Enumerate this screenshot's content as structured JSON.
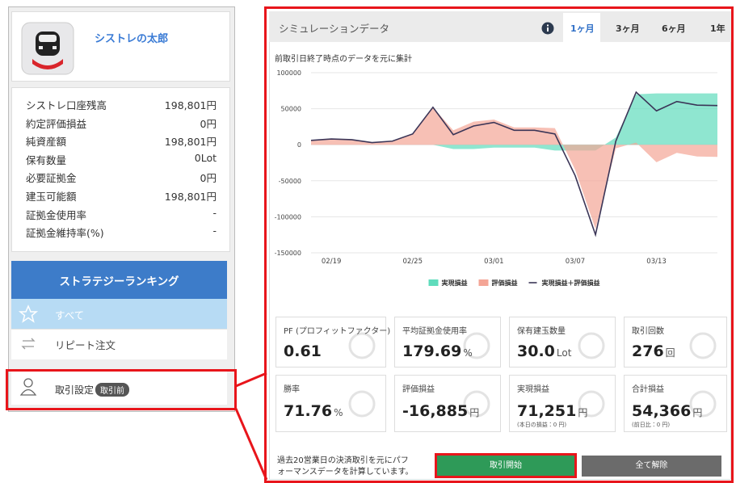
{
  "sidebar": {
    "profile": {
      "name": "シストレの太郎"
    },
    "account": [
      {
        "label": "シストレ口座残高",
        "value": "198,801円"
      },
      {
        "label": "約定評価損益",
        "value": "0円"
      },
      {
        "label": "純資産額",
        "value": "198,801円"
      },
      {
        "label": "保有数量",
        "value": "0Lot"
      },
      {
        "label": "必要証拠金",
        "value": "0円"
      },
      {
        "label": "建玉可能額",
        "value": "198,801円"
      },
      {
        "label": "証拠金使用率",
        "value": "-"
      },
      {
        "label": "証拠金維持率(%)",
        "value": "-"
      }
    ],
    "ranking": {
      "title": "ストラテジーランキング",
      "items": [
        "すべて",
        "リピート注文"
      ]
    },
    "settings": {
      "label": "取引設定",
      "badge": "取引前"
    }
  },
  "panel": {
    "title": "シミュレーションデータ",
    "tabs": [
      "1ヶ月",
      "3ヶ月",
      "6ヶ月",
      "1年"
    ],
    "note": "前取引日終了時点のデータを元に集計",
    "stats": [
      {
        "label": "PF (プロフィットファクター)",
        "value": "0.61"
      },
      {
        "label": "平均証拠金使用率",
        "value": "179.69",
        "unit": "%"
      },
      {
        "label": "保有建玉数量",
        "value": "30.0",
        "unit": "Lot"
      },
      {
        "label": "取引回数",
        "value": "276",
        "unit": "回"
      },
      {
        "label": "勝率",
        "value": "71.76",
        "unit": "%"
      },
      {
        "label": "評価損益",
        "value": "-16,885",
        "unit": "円"
      },
      {
        "label": "実現損益",
        "value": "71,251",
        "unit": "円",
        "sub": "(本日の損益：0 円)"
      },
      {
        "label": "合計損益",
        "value": "54,366",
        "unit": "円",
        "sub": "(前日比：0 円)"
      }
    ],
    "footer": {
      "text": [
        "過去20営業日の決済取引を元にパフ",
        "ォーマンスデータを計算しています。"
      ],
      "buttons": [
        "取引開始",
        "全て解除"
      ]
    }
  },
  "chart_data": {
    "type": "line",
    "categories": [
      null,
      "02/19",
      null,
      null,
      null,
      "02/25",
      null,
      null,
      null,
      "03/01",
      null,
      null,
      null,
      "03/07",
      null,
      null,
      null,
      "03/13",
      null,
      null,
      null
    ],
    "series": [
      {
        "name": "実現損益",
        "type": "area",
        "color": "#5fdcbc",
        "values": [
          0,
          0,
          0,
          0,
          0,
          0,
          0,
          -6000,
          -6000,
          -4000,
          -4000,
          -4000,
          -8000,
          -8000,
          -8000,
          10000,
          70000,
          71251,
          71251,
          71251,
          71251
        ]
      },
      {
        "name": "評価損益",
        "type": "area",
        "color": "#f4a596",
        "values": [
          6000,
          8000,
          7000,
          3000,
          5000,
          15000,
          52000,
          20000,
          32000,
          35000,
          24000,
          24000,
          23000,
          -35000,
          -117000,
          -5000,
          3000,
          -24251,
          -11251,
          -16251,
          -16885
        ]
      },
      {
        "name": "実現損益＋評価損益",
        "type": "line",
        "color": "#3b3557",
        "values": [
          6000,
          8000,
          7000,
          3000,
          5000,
          15000,
          52000,
          14000,
          26000,
          31000,
          20000,
          20000,
          15000,
          -43000,
          -125000,
          5000,
          73000,
          47000,
          60000,
          55000,
          54366
        ]
      }
    ],
    "ylim": [
      -150000,
      100000
    ],
    "yticks": [
      100000,
      50000,
      0,
      -50000,
      -100000,
      -150000
    ],
    "grid": true
  }
}
